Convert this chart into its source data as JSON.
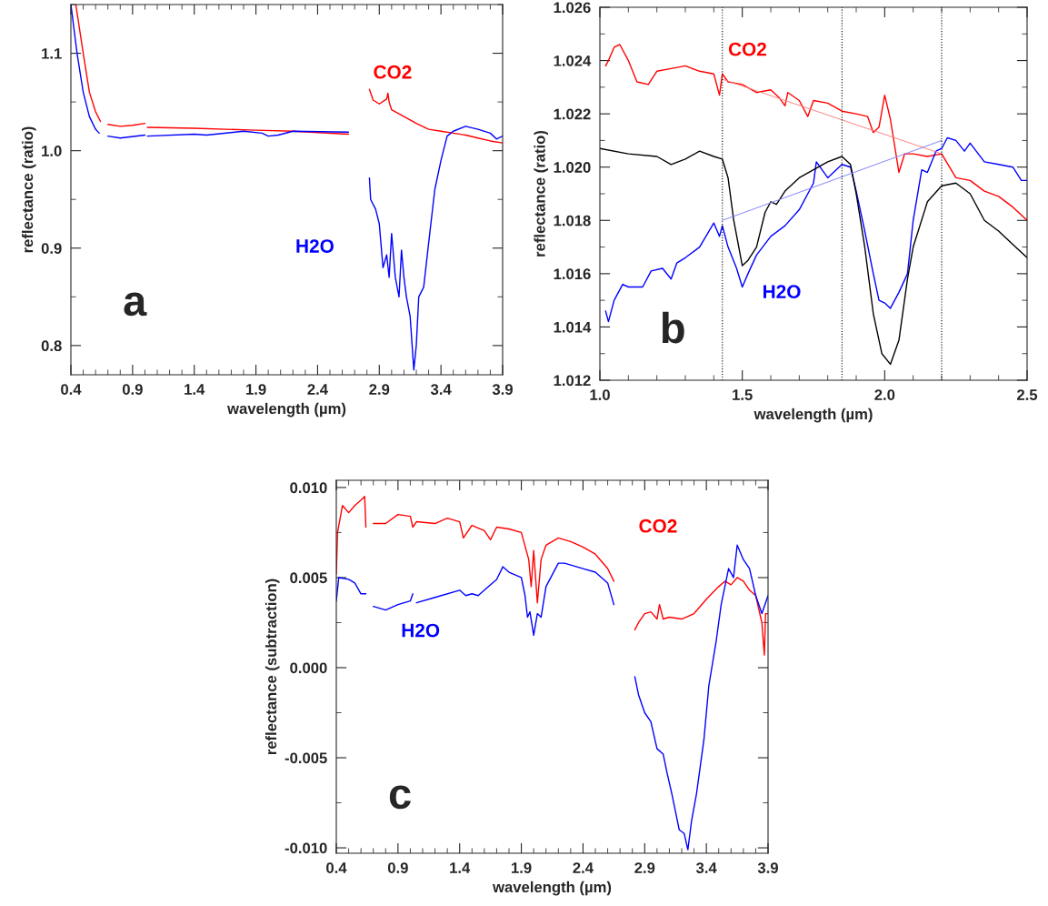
{
  "chart_data": [
    {
      "type": "line",
      "xlabel": "wavelength (µm)",
      "ylabel": "reflectance (ratio)",
      "xlim": [
        0.4,
        3.9
      ],
      "ylim": [
        0.77,
        1.15
      ],
      "xticks": [
        0.4,
        0.9,
        1.4,
        1.9,
        2.4,
        2.9,
        3.4,
        3.9
      ],
      "yticks": [
        0.8,
        0.9,
        {
          "value": 1.0,
          "label": "1.0"
        },
        1.1
      ],
      "annotations": [
        "a"
      ],
      "series": [
        {
          "name": "CO2",
          "color": "#ff0000",
          "x": [
            0.44,
            0.5,
            0.55,
            0.6,
            0.64,
            0.67,
            0.7,
            0.8,
            0.9,
            1.0,
            1.01,
            1.02,
            1.4,
            1.9,
            2.2,
            2.65,
            2.74,
            2.82,
            2.85,
            2.9,
            2.96,
            2.97,
            2.98,
            3.0,
            3.1,
            3.2,
            3.3,
            3.4,
            3.5,
            3.6,
            3.7,
            3.8,
            3.9
          ],
          "values": [
            1.15,
            1.1,
            1.06,
            1.04,
            1.03,
            null,
            1.027,
            1.025,
            1.026,
            1.028,
            null,
            1.024,
            1.023,
            1.021,
            1.02,
            1.017,
            null,
            1.063,
            1.052,
            1.048,
            1.053,
            1.059,
            1.05,
            1.042,
            1.035,
            1.028,
            1.022,
            1.02,
            1.018,
            1.016,
            1.013,
            1.01,
            1.008
          ]
        },
        {
          "name": "H2O",
          "color": "#0000ff",
          "x": [
            0.4,
            0.45,
            0.5,
            0.55,
            0.6,
            0.63,
            0.67,
            0.7,
            0.8,
            1.0,
            1.01,
            1.02,
            1.4,
            1.5,
            1.8,
            1.95,
            2.0,
            2.08,
            2.2,
            2.65,
            2.74,
            2.82,
            2.83,
            2.87,
            2.9,
            2.93,
            2.96,
            2.98,
            3.0,
            3.03,
            3.06,
            3.08,
            3.1,
            3.12,
            3.15,
            3.18,
            3.2,
            3.22,
            3.26,
            3.3,
            3.35,
            3.4,
            3.45,
            3.5,
            3.6,
            3.7,
            3.8,
            3.85,
            3.9
          ],
          "values": [
            1.15,
            1.1,
            1.06,
            1.035,
            1.022,
            1.018,
            null,
            1.015,
            1.013,
            1.016,
            null,
            1.015,
            1.017,
            1.016,
            1.02,
            1.018,
            1.015,
            1.016,
            1.02,
            1.019,
            null,
            0.972,
            0.95,
            0.94,
            0.925,
            0.88,
            0.893,
            0.87,
            0.915,
            0.87,
            0.85,
            0.898,
            0.87,
            0.85,
            0.83,
            0.775,
            0.8,
            0.85,
            0.86,
            0.905,
            0.96,
            0.99,
            1.015,
            1.02,
            1.025,
            1.022,
            1.018,
            1.012,
            1.015
          ]
        }
      ]
    },
    {
      "type": "line",
      "xlabel": "wavelength (µm)",
      "ylabel": "reflectance (ratio)",
      "xlim": [
        1.0,
        2.5
      ],
      "ylim": [
        1.012,
        1.026
      ],
      "xticks": [
        {
          "value": 1.0,
          "label": "1.0"
        },
        1.5,
        {
          "value": 2.0,
          "label": "2.0"
        },
        2.5
      ],
      "yticks": [
        {
          "value": 1.012,
          "label": "1.012"
        },
        {
          "value": 1.014,
          "label": "1.014"
        },
        {
          "value": 1.016,
          "label": "1.016"
        },
        {
          "value": 1.018,
          "label": "1.018"
        },
        {
          "value": 1.02,
          "label": "1.020"
        },
        {
          "value": 1.022,
          "label": "1.022"
        },
        {
          "value": 1.024,
          "label": "1.024"
        },
        {
          "value": 1.026,
          "label": "1.026"
        }
      ],
      "annotations": [
        "b"
      ],
      "ref_lines": [
        {
          "axis": "x",
          "value": 1.43,
          "color": "#000000",
          "line_style": "dotted"
        },
        {
          "axis": "x",
          "value": 1.85,
          "color": "#000000",
          "line_style": "dotted"
        },
        {
          "axis": "x",
          "value": 2.2,
          "color": "#000000",
          "line_style": "dotted"
        }
      ],
      "series": [
        {
          "name": "CO2",
          "color": "#ff0000",
          "x": [
            1.02,
            1.03,
            1.05,
            1.07,
            1.1,
            1.13,
            1.17,
            1.2,
            1.25,
            1.3,
            1.35,
            1.4,
            1.42,
            1.43,
            1.45,
            1.5,
            1.55,
            1.6,
            1.63,
            1.65,
            1.66,
            1.7,
            1.73,
            1.75,
            1.8,
            1.85,
            1.9,
            1.94,
            1.96,
            1.98,
            2.0,
            2.02,
            2.05,
            2.07,
            2.1,
            2.15,
            2.2,
            2.25,
            2.3,
            2.35,
            2.4,
            2.45,
            2.5
          ],
          "values": [
            1.0238,
            1.024,
            1.0245,
            1.0246,
            1.024,
            1.0232,
            1.0231,
            1.0236,
            1.0237,
            1.0238,
            1.0236,
            1.0235,
            1.0227,
            1.0235,
            1.0232,
            1.0231,
            1.0228,
            1.0229,
            1.0226,
            1.0223,
            1.0228,
            1.0225,
            1.0219,
            1.0225,
            1.0224,
            1.0221,
            1.022,
            1.0219,
            1.0213,
            1.0215,
            1.0227,
            1.0218,
            1.0198,
            1.0205,
            1.0205,
            1.0204,
            1.0205,
            1.0196,
            1.0195,
            1.0191,
            1.0189,
            1.0185,
            1.018
          ]
        },
        {
          "name": "H2O",
          "color": "#0000ff",
          "x": [
            1.02,
            1.03,
            1.05,
            1.08,
            1.1,
            1.15,
            1.18,
            1.22,
            1.25,
            1.27,
            1.3,
            1.35,
            1.4,
            1.42,
            1.43,
            1.45,
            1.48,
            1.5,
            1.52,
            1.55,
            1.6,
            1.65,
            1.7,
            1.75,
            1.76,
            1.8,
            1.85,
            1.88,
            1.9,
            1.93,
            1.96,
            1.98,
            2.0,
            2.02,
            2.05,
            2.08,
            2.1,
            2.13,
            2.15,
            2.18,
            2.2,
            2.22,
            2.25,
            2.28,
            2.3,
            2.35,
            2.4,
            2.45,
            2.48,
            2.5
          ],
          "values": [
            1.0146,
            1.0142,
            1.015,
            1.0156,
            1.0155,
            1.0155,
            1.0161,
            1.0162,
            1.0158,
            1.0164,
            1.0166,
            1.017,
            1.0179,
            1.0174,
            1.0178,
            1.017,
            1.0162,
            1.0155,
            1.016,
            1.0167,
            1.0174,
            1.0178,
            1.0184,
            1.0194,
            1.0202,
            1.0196,
            1.0201,
            1.02,
            1.0191,
            1.0176,
            1.016,
            1.015,
            1.0149,
            1.0147,
            1.0153,
            1.016,
            1.018,
            1.0199,
            1.0198,
            1.0206,
            1.0207,
            1.0211,
            1.021,
            1.0206,
            1.0209,
            1.0202,
            1.0201,
            1.02,
            1.0195,
            1.0195
          ]
        },
        {
          "color": "#000000",
          "x": [
            1.0,
            1.1,
            1.2,
            1.25,
            1.3,
            1.35,
            1.4,
            1.43,
            1.45,
            1.47,
            1.5,
            1.52,
            1.55,
            1.58,
            1.6,
            1.62,
            1.65,
            1.7,
            1.75,
            1.8,
            1.85,
            1.88,
            1.9,
            1.93,
            1.96,
            1.99,
            2.02,
            2.05,
            2.08,
            2.1,
            2.15,
            2.2,
            2.25,
            2.3,
            2.35,
            2.4,
            2.45,
            2.5
          ],
          "values": [
            1.0207,
            1.0205,
            1.0204,
            1.0201,
            1.0203,
            1.0206,
            1.0204,
            1.0203,
            1.0196,
            1.018,
            1.0163,
            1.0165,
            1.017,
            1.0183,
            1.0187,
            1.0186,
            1.0191,
            1.0196,
            1.0199,
            1.0202,
            1.0204,
            1.0201,
            1.019,
            1.017,
            1.0145,
            1.013,
            1.0126,
            1.0135,
            1.0158,
            1.017,
            1.0187,
            1.0193,
            1.0194,
            1.019,
            1.018,
            1.0176,
            1.0171,
            1.0166
          ]
        },
        {
          "color": "#ff8080",
          "x": [
            1.43,
            2.2
          ],
          "values": [
            1.0233,
            1.0205
          ]
        },
        {
          "color": "#8080ff",
          "x": [
            1.43,
            2.2
          ],
          "values": [
            1.018,
            1.021
          ]
        }
      ]
    },
    {
      "type": "line",
      "xlabel": "wavelength (µm)",
      "ylabel": "reflectance (subtraction)",
      "xlim": [
        0.4,
        3.9
      ],
      "ylim": [
        -0.0103,
        0.0104
      ],
      "xticks": [
        0.4,
        0.9,
        1.4,
        1.9,
        2.4,
        2.9,
        3.4,
        3.9
      ],
      "yticks": [
        {
          "value": -0.01,
          "label": "-0.010"
        },
        {
          "value": -0.005,
          "label": "-0.005"
        },
        {
          "value": 0.0,
          "label": "0.000"
        },
        {
          "value": 0.005,
          "label": "0.005"
        },
        {
          "value": 0.01,
          "label": "0.010"
        }
      ],
      "annotations": [
        "c"
      ],
      "series": [
        {
          "name": "CO2",
          "color": "#ff0000",
          "x": [
            0.4,
            0.41,
            0.45,
            0.5,
            0.55,
            0.6,
            0.63,
            0.64,
            0.67,
            0.7,
            0.8,
            0.9,
            1.0,
            1.02,
            1.05,
            1.2,
            1.3,
            1.4,
            1.43,
            1.5,
            1.6,
            1.65,
            1.7,
            1.8,
            1.9,
            1.96,
            1.98,
            2.0,
            2.03,
            2.06,
            2.1,
            2.2,
            2.3,
            2.4,
            2.5,
            2.6,
            2.65,
            2.74,
            2.82,
            2.85,
            2.9,
            2.95,
            3.0,
            3.02,
            3.05,
            3.1,
            3.2,
            3.3,
            3.4,
            3.5,
            3.55,
            3.6,
            3.65,
            3.7,
            3.75,
            3.8,
            3.85,
            3.87,
            3.88,
            3.9
          ],
          "values": [
            0.0052,
            0.0075,
            0.009,
            0.0086,
            0.009,
            0.0093,
            0.0095,
            0.0078,
            null,
            0.008,
            0.008,
            0.0085,
            0.0084,
            0.0078,
            0.0081,
            0.008,
            0.0083,
            0.0081,
            0.0072,
            0.0079,
            0.0076,
            0.0071,
            0.0078,
            0.0077,
            0.0075,
            0.006,
            0.0045,
            0.0065,
            0.0036,
            0.006,
            0.0068,
            0.0072,
            0.007,
            0.0067,
            0.0063,
            0.0055,
            0.0048,
            null,
            0.0021,
            0.0025,
            0.003,
            0.0031,
            0.0027,
            0.0035,
            0.0027,
            0.0028,
            0.0027,
            0.003,
            0.0038,
            0.0045,
            0.0048,
            0.0046,
            0.005,
            0.0048,
            0.0043,
            0.004,
            0.0025,
            0.0007,
            0.003,
            0.003
          ]
        },
        {
          "name": "H2O",
          "color": "#0000ff",
          "x": [
            0.4,
            0.42,
            0.5,
            0.55,
            0.6,
            0.64,
            0.67,
            0.7,
            0.8,
            0.9,
            1.0,
            1.02,
            1.035,
            1.05,
            1.2,
            1.4,
            1.45,
            1.5,
            1.55,
            1.6,
            1.7,
            1.75,
            1.8,
            1.9,
            1.93,
            1.95,
            1.97,
            2.0,
            2.03,
            2.06,
            2.1,
            2.2,
            2.25,
            2.3,
            2.4,
            2.5,
            2.6,
            2.65,
            2.74,
            2.82,
            2.85,
            2.9,
            2.95,
            3.0,
            3.05,
            3.08,
            3.12,
            3.15,
            3.18,
            3.22,
            3.25,
            3.28,
            3.32,
            3.38,
            3.42,
            3.48,
            3.52,
            3.58,
            3.62,
            3.65,
            3.7,
            3.75,
            3.8,
            3.85,
            3.9
          ],
          "values": [
            0.0037,
            0.005,
            0.0049,
            0.0047,
            0.0041,
            0.0041,
            null,
            0.0034,
            0.0032,
            0.0035,
            0.0037,
            0.0041,
            null,
            0.0036,
            0.0039,
            0.0043,
            0.004,
            0.0041,
            0.004,
            0.0043,
            0.0049,
            0.0056,
            0.0053,
            0.005,
            0.004,
            0.0028,
            0.0031,
            0.0018,
            0.003,
            0.0028,
            0.0045,
            0.0058,
            0.0058,
            0.0057,
            0.0055,
            0.0053,
            0.0047,
            0.0035,
            null,
            -0.0005,
            -0.0015,
            -0.0025,
            -0.003,
            -0.0045,
            -0.0048,
            -0.0058,
            -0.007,
            -0.008,
            -0.009,
            -0.0092,
            -0.0101,
            -0.0085,
            -0.007,
            -0.004,
            -0.001,
            0.0015,
            0.0035,
            0.0055,
            0.005,
            0.0068,
            0.006,
            0.0055,
            0.004,
            0.003,
            0.004
          ]
        }
      ]
    }
  ]
}
